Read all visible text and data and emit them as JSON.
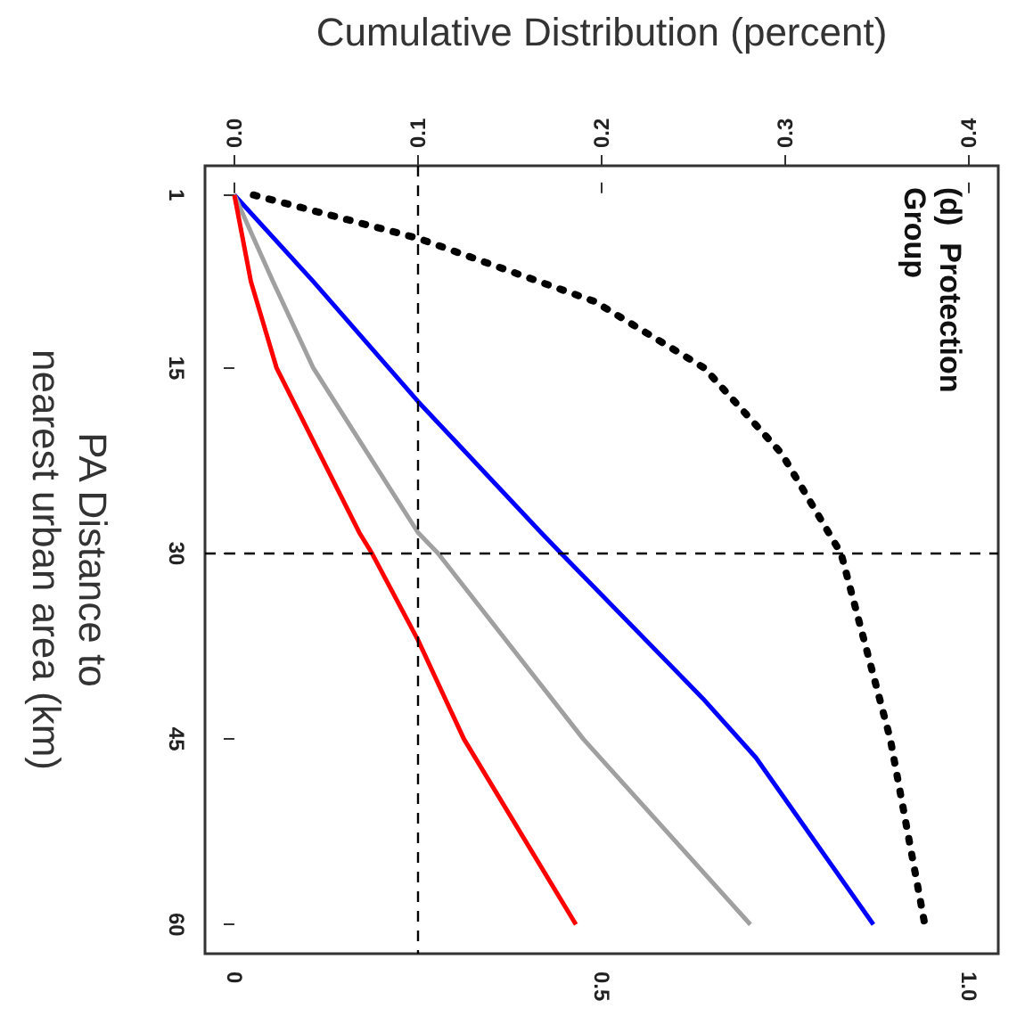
{
  "chart_data": {
    "type": "line",
    "x2label": "Cumulative Distribution (percent)",
    "ylabel": "PA Distance to\nnearest urban area (km)",
    "annotations": [
      "(d)  Protection\nGroup"
    ],
    "ylim": [
      62.36,
      -1.36
    ],
    "yticks": [
      1,
      15,
      30,
      45,
      60
    ],
    "x2lim": [
      -0.016,
      0.416
    ],
    "x2ticks": [
      {
        "value": 0,
        "label": "0.0"
      },
      0.1,
      0.2,
      0.3,
      0.4
    ],
    "xlim": [
      -0.04,
      1.04
    ],
    "xticks": [
      0,
      0.5,
      {
        "value": 1,
        "label": "1.0"
      }
    ],
    "marker": "none",
    "grid": false,
    "ref_lines": [
      {
        "axis": "x2",
        "value": 0.1,
        "label": null,
        "color": "#000000",
        "line_style": "dashed"
      },
      {
        "axis": "y",
        "value": 30,
        "label": null,
        "color": "#000000",
        "line_style": "dashed"
      }
    ],
    "series": [
      {
        "color": "#0000ff",
        "line_style": "solid",
        "axis": "x2",
        "x": [
          0,
          0.043,
          0.1,
          0.167,
          0.178,
          0.255,
          0.284,
          0.348
        ],
        "values": [
          1,
          8,
          17.7,
          28.3,
          30,
          41.7,
          46.5,
          60
        ]
      },
      {
        "color": "#a0a0a0",
        "line_style": "solid",
        "axis": "x2",
        "x": [
          0,
          0.021,
          0.043,
          0.1,
          0.111,
          0.19,
          0.281
        ],
        "values": [
          1,
          8,
          15,
          28.3,
          30,
          45,
          60
        ]
      },
      {
        "color": "#ff0000",
        "line_style": "solid",
        "axis": "x2",
        "x": [
          0,
          0.009,
          0.023,
          0.068,
          0.075,
          0.1,
          0.125,
          0.186
        ],
        "values": [
          1,
          8,
          15,
          28.3,
          30,
          37,
          45,
          60
        ]
      },
      {
        "color": "#000000",
        "line_style": "dotted",
        "x": [
          0.026,
          0.25,
          0.49,
          0.64,
          0.745,
          0.826,
          0.893,
          0.94
        ],
        "values": [
          1,
          4.5,
          9.6,
          15,
          21.9,
          30,
          45,
          60
        ]
      }
    ]
  }
}
